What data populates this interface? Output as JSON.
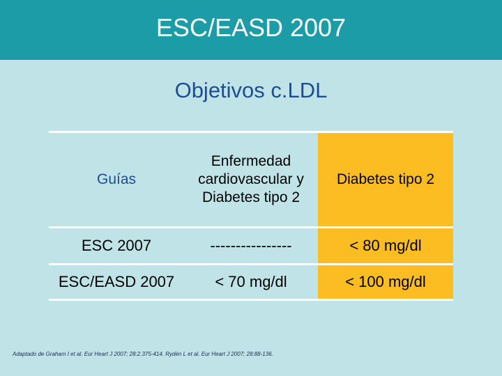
{
  "title": "ESC/EASD 2007",
  "subtitle": "Objetivos c.LDL",
  "table": {
    "headers": {
      "guias": "Guías",
      "ecv_dm": "Enfermedad cardiovascular y Diabetes tipo 2",
      "dm2": "Diabetes tipo 2"
    },
    "rows": [
      {
        "guia": "ESC 2007",
        "ecv_dm": "----------------",
        "dm2": "< 80 mg/dl"
      },
      {
        "guia": "ESC/EASD 2007",
        "ecv_dm": "< 70 mg/dl",
        "dm2": "< 100 mg/dl"
      }
    ]
  },
  "footnote": "Adaptado de Graham I et al. Eur Heart J 2007; 28:2.375-414. Rydén L et al. Eur Heart J 2007; 28:88-136.",
  "colors": {
    "title_bar": "#1b9ca6",
    "background": "#bfe3e6",
    "highlight": "#fbbd21",
    "subtitle_text": "#1c4e91"
  }
}
